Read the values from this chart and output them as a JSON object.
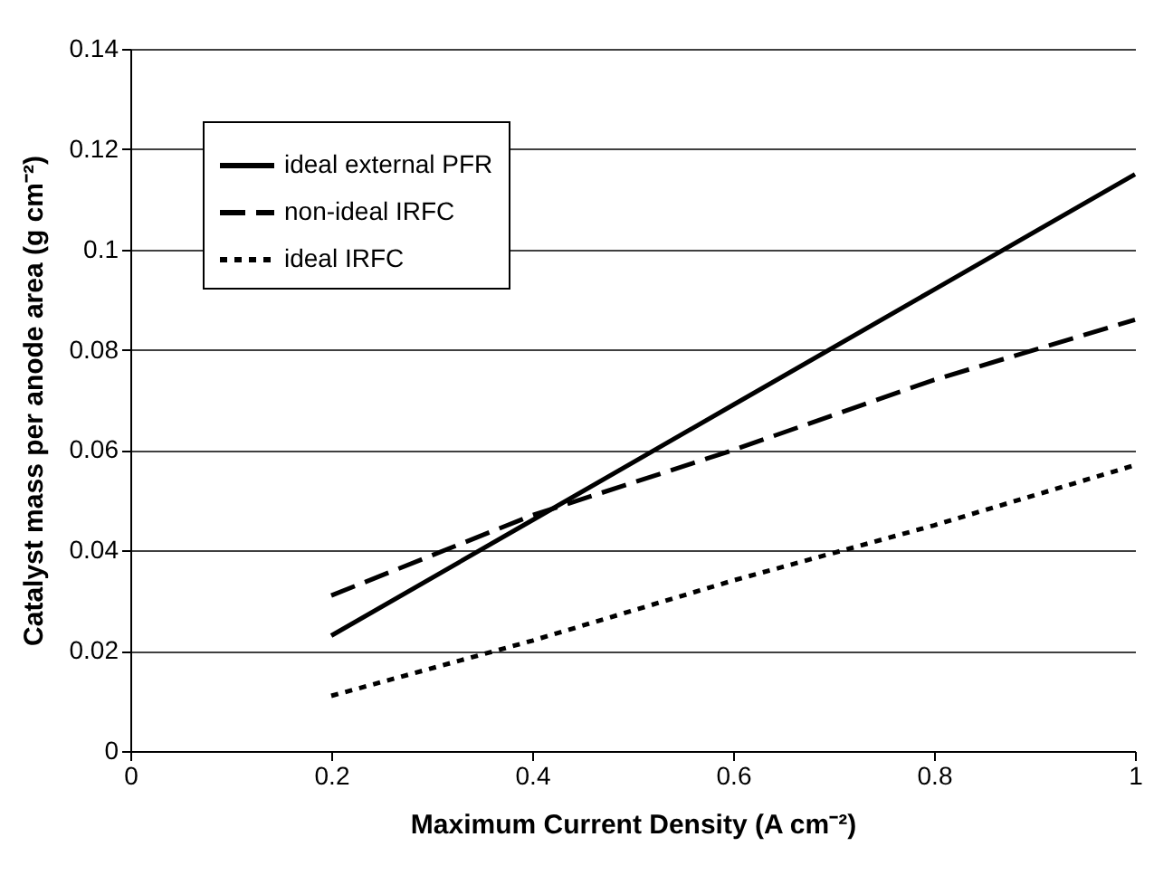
{
  "chart_data": {
    "type": "line",
    "xlabel": "Maximum Current Density (A cm⁻²)",
    "ylabel": "Catalyst mass per anode area (g cm⁻²)",
    "x": [
      0.2,
      0.4,
      0.6,
      0.8,
      1
    ],
    "series": [
      {
        "name": "ideal external PFR",
        "color": "#000000",
        "line_style": "solid",
        "values": [
          0.023,
          0.046,
          0.069,
          0.092,
          0.115
        ]
      },
      {
        "name": "non-ideal IRFC",
        "color": "#000000",
        "line_style": "dashed",
        "values": [
          0.031,
          0.047,
          0.06,
          0.074,
          0.086
        ]
      },
      {
        "name": "ideal IRFC",
        "color": "#000000",
        "line_style": "dotted",
        "values": [
          0.011,
          0.022,
          0.034,
          0.045,
          0.057
        ]
      }
    ],
    "xlim": [
      0,
      1
    ],
    "xticks": [
      0,
      0.2,
      0.4,
      0.6,
      0.8,
      1
    ],
    "ylim": [
      0,
      0.14
    ],
    "yticks": [
      0,
      0.02,
      0.04,
      0.06,
      0.08,
      0.1,
      0.12,
      0.14
    ],
    "grid": "y",
    "legend": "top left",
    "marker": "none"
  }
}
